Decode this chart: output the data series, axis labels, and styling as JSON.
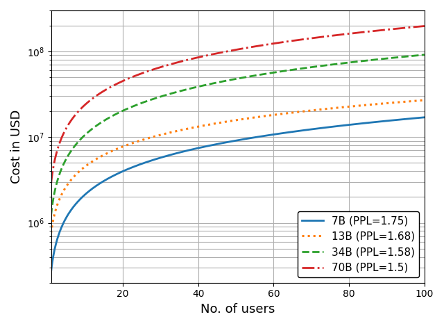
{
  "title": "",
  "xlabel": "No. of users",
  "ylabel": "Cost in USD",
  "xlim": [
    1,
    100
  ],
  "ylim_log": [
    200000.0,
    300000000.0
  ],
  "xticks": [
    20,
    40,
    60,
    80,
    100
  ],
  "series": [
    {
      "label": "7B (PPL=1.75)",
      "color": "#1f77b4",
      "linestyle": "solid",
      "linewidth": 2.0,
      "A": 200000,
      "alpha": 0.96
    },
    {
      "label": "13B (PPL=1.68)",
      "color": "#ff7f0e",
      "linestyle": "dotted",
      "linewidth": 2.2,
      "A": 500000,
      "alpha": 0.96
    },
    {
      "label": "34B (PPL=1.58)",
      "color": "#2ca02c",
      "linestyle": "dashed",
      "linewidth": 2.0,
      "A": 1100000,
      "alpha": 0.97
    },
    {
      "label": "70B (PPL=1.5)",
      "color": "#d62728",
      "linestyle": "dashdot",
      "linewidth": 2.0,
      "A": 3500000,
      "alpha": 0.965
    }
  ],
  "grid_color": "#b0b0b0",
  "legend_loc": "lower right",
  "legend_fontsize": 11
}
